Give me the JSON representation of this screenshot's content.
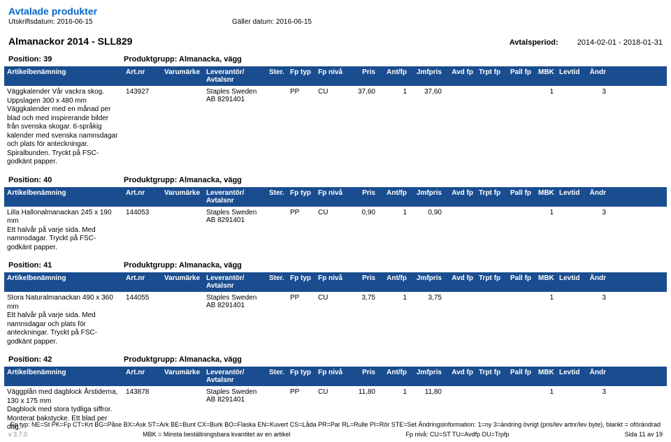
{
  "page": {
    "title": "Avtalade produkter",
    "print_date_label": "Utskriftsdatum:",
    "print_date": "2016-06-15",
    "valid_label": "Gäller datum:",
    "valid_date": "2016-06-15"
  },
  "section": {
    "name": "Almanackor 2014 - SLL829",
    "period_label": "Avtalsperiod:",
    "period_value": "2014-02-01 - 2018-01-31"
  },
  "headers": {
    "name": "Artikelbenämning",
    "art": "Art.nr",
    "var": "Varumärke",
    "lev": "Leverantör/ Avtalsnr",
    "ster": "Ster.",
    "fpt": "Fp typ",
    "fpn": "Fp nivå",
    "pris": "Pris",
    "ant": "Ant/fp",
    "jmf": "Jmfpris",
    "avd": "Avd fp",
    "trp": "Trpt fp",
    "pall": "Pall fp",
    "mbk": "MBK",
    "lev2": "Levtid",
    "and": "Ändr"
  },
  "positions": [
    {
      "pos_label": "Position: 39",
      "group_label": "Produktgrupp: Almanacka, vägg",
      "row": {
        "desc": "Väggkalender Vår vackra skog. Uppslagen 300 x 480 mm\nVäggkalender med en månad per blad och med inspirerande bilder från svenska skogar. 6-språkig kalender med svenska namnsdagar och plats för anteckningar. Spiralbunden. Tryckt på FSC-godkänt papper.",
        "art": "143927",
        "lev": "Staples Sweden AB 8291401",
        "fpt": "PP",
        "fpn": "CU",
        "pris": "37,60",
        "ant": "1",
        "jmf": "37,60",
        "mbk": "1",
        "and": "3"
      }
    },
    {
      "pos_label": "Position: 40",
      "group_label": "Produktgrupp: Almanacka, vägg",
      "row": {
        "desc": "Lilla Hallonalmanackan 245 x 190 mm\nEtt halvår på varje sida. Med namnsdagar. Tryckt på FSC-godkänt papper.",
        "art": "144053",
        "lev": "Staples Sweden AB 8291401",
        "fpt": "PP",
        "fpn": "CU",
        "pris": "0,90",
        "ant": "1",
        "jmf": "0,90",
        "mbk": "1",
        "and": "3"
      }
    },
    {
      "pos_label": "Position: 41",
      "group_label": "Produktgrupp: Almanacka, vägg",
      "row": {
        "desc": "Stora Naturalmanackan 490 x 360 mm\nEtt halvår på varje sida. Med namnsdagar och plats för anteckningar. Tryckt på FSC-godkänt papper.",
        "art": "144055",
        "lev": "Staples Sweden AB 8291401",
        "fpt": "PP",
        "fpn": "CU",
        "pris": "3,75",
        "ant": "1",
        "jmf": "3,75",
        "mbk": "1",
        "and": "3"
      }
    },
    {
      "pos_label": "Position: 42",
      "group_label": "Produktgrupp: Almanacka, vägg",
      "row": {
        "desc": "Väggplån med dagblock Årstiderna, 130 x 175 mm\nDagblock med stora tydliga siffror. Monterat bakstycke. Ett blad per dag.",
        "art": "143878",
        "lev": "Staples Sweden AB 8291401",
        "fpt": "PP",
        "fpn": "CU",
        "pris": "11,80",
        "ant": "1",
        "jmf": "11,80",
        "mbk": "1",
        "and": "3"
      }
    }
  ],
  "footer": {
    "line1": "Fp typ: NE=St PK=Fp CT=Krt BG=Påse BX=Ask ST=Ark BE=Bunt CX=Burk BO=Flaska EN=Kuvert CS=Låda PR=Par RL=Rulle PI=Rör STE=Set Ändringsinformation: 1=ny 3=ändring övrigt (pris/lev artnr/lev byte), blankt = oförändrad",
    "version": "v 3.7.0",
    "mbk": "MBK = Minsta beställningsbara kvantitet av en artikel",
    "fpniva": "Fp nivå: CU=ST TU=Avdfp DU=Trpfp",
    "page": "Sida 11 av 19"
  },
  "colors": {
    "header_bg": "#1a4d8f",
    "header_fg": "#ffffff",
    "title_fg": "#0066cc"
  }
}
